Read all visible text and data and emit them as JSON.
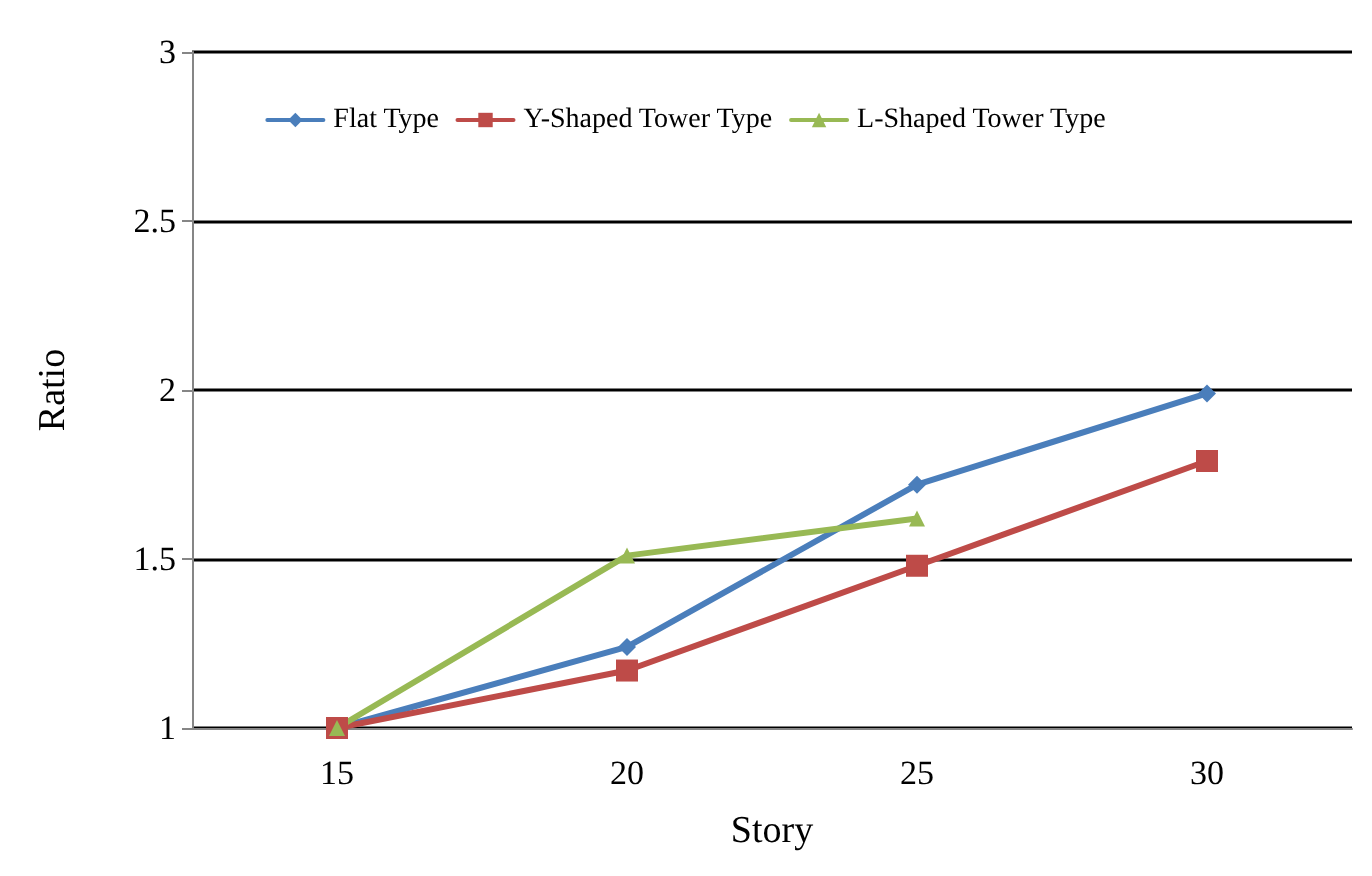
{
  "chart_data": {
    "type": "line",
    "xlabel": "Story",
    "ylabel": "Ratio",
    "categories": [
      "15",
      "20",
      "25",
      "30"
    ],
    "series": [
      {
        "name": "Flat Type",
        "color": "#4a7ebb",
        "marker": "diamond",
        "values": [
          1,
          1.24,
          1.72,
          1.99
        ]
      },
      {
        "name": "Y-Shaped Tower Type",
        "color": "#be4b48",
        "marker": "square",
        "values": [
          1,
          1.17,
          1.48,
          1.79
        ]
      },
      {
        "name": "L-Shaped Tower Type",
        "color": "#98b954",
        "marker": "triangle",
        "values": [
          1,
          1.51,
          1.62,
          null
        ]
      }
    ],
    "ylim": [
      1,
      3
    ],
    "yticks": [
      1,
      1.5,
      2,
      2.5,
      3
    ],
    "grid": "y",
    "legend": "top",
    "line_style": "solid"
  }
}
